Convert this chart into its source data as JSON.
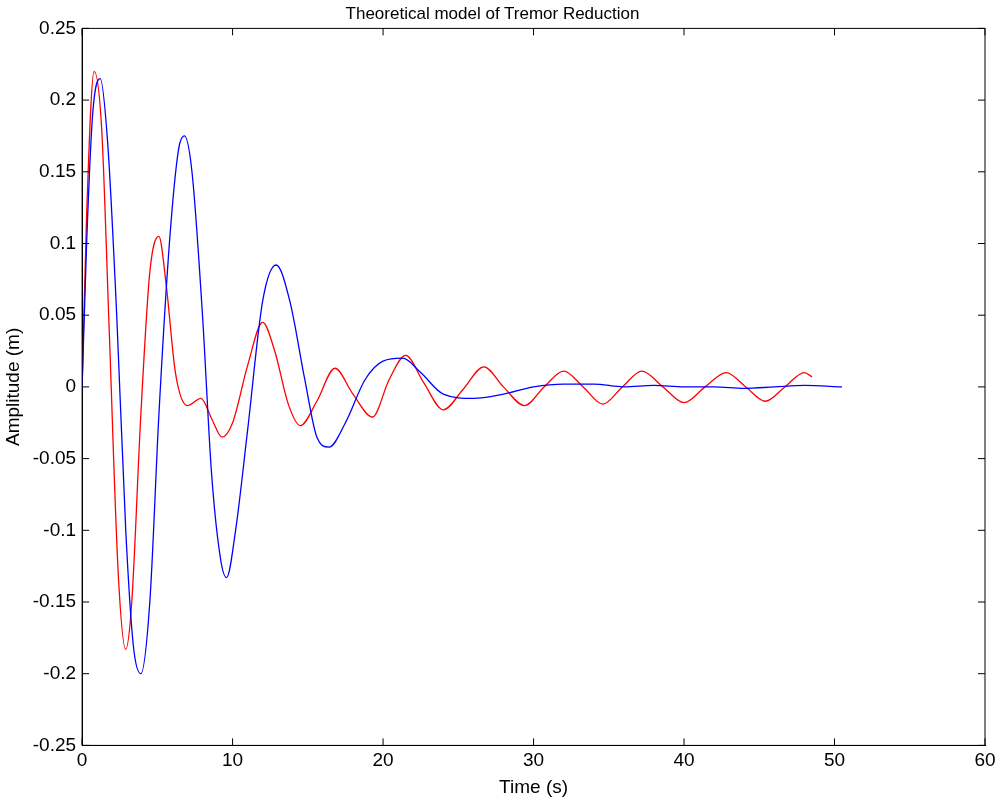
{
  "chart_data": {
    "type": "line",
    "title": "Theoretical model of Tremor Reduction",
    "xlabel": "Time (s)",
    "ylabel": "Amplitude (m)",
    "xlim": [
      0,
      60
    ],
    "xticks": [
      0,
      10,
      20,
      30,
      40,
      50,
      60
    ],
    "ylim": [
      -0.25,
      0.25
    ],
    "yticks": [
      -0.25,
      -0.2,
      -0.15,
      -0.1,
      -0.05,
      0,
      0.05,
      0.1,
      0.15,
      0.2,
      0.25
    ],
    "grid": false,
    "legend": false,
    "marker": "none",
    "line_style": "solid",
    "series": [
      {
        "color": "#0000ff",
        "x": [
          0,
          0.3,
          0.7,
          1.2,
          1.7,
          2.3,
          2.9,
          3.4,
          3.9,
          4.5,
          5.1,
          5.8,
          6.4,
          6.8,
          7.3,
          8,
          8.6,
          9.2,
          9.6,
          10.2,
          11,
          12,
          12.9,
          13.8,
          14.8,
          15.6,
          16.4,
          17.5,
          18.8,
          20,
          21.3,
          22.5,
          24,
          26,
          28,
          30,
          32,
          34,
          36,
          38,
          40,
          42,
          44,
          46,
          48,
          50.5
        ],
        "values": [
          0,
          0.1,
          0.19,
          0.215,
          0.17,
          0.05,
          -0.1,
          -0.18,
          -0.2,
          -0.15,
          -0.02,
          0.1,
          0.165,
          0.175,
          0.15,
          0.05,
          -0.06,
          -0.12,
          -0.133,
          -0.1,
          -0.03,
          0.06,
          0.085,
          0.06,
          0.005,
          -0.035,
          -0.042,
          -0.025,
          0.005,
          0.018,
          0.02,
          0.01,
          -0.005,
          -0.008,
          -0.005,
          0,
          0.002,
          0.002,
          0,
          0.001,
          0,
          0,
          -0.001,
          0,
          0.001,
          0
        ]
      },
      {
        "color": "#ff0000",
        "x": [
          0,
          0.3,
          0.8,
          1.3,
          1.8,
          2.4,
          2.9,
          3.3,
          3.9,
          4.5,
          5.1,
          5.6,
          6.2,
          7,
          7.9,
          8.6,
          9.3,
          10,
          11,
          12,
          12.8,
          13.7,
          14.5,
          15.6,
          16.8,
          18,
          19.3,
          20.4,
          21.5,
          22.7,
          24,
          25.3,
          26.7,
          28,
          29.4,
          30.7,
          32,
          33.3,
          34.6,
          35.9,
          37.2,
          38.6,
          40,
          41.4,
          42.8,
          44.1,
          45.4,
          46.7,
          48,
          48.5
        ],
        "values": [
          0,
          0.12,
          0.22,
          0.18,
          0.04,
          -0.13,
          -0.183,
          -0.15,
          -0.02,
          0.08,
          0.105,
          0.07,
          0.01,
          -0.013,
          -0.008,
          -0.022,
          -0.035,
          -0.025,
          0.015,
          0.045,
          0.025,
          -0.012,
          -0.027,
          -0.01,
          0.013,
          -0.005,
          -0.021,
          0.005,
          0.022,
          0.003,
          -0.016,
          -0.002,
          0.014,
          0,
          -0.013,
          0,
          0.011,
          0,
          -0.012,
          0,
          0.011,
          0,
          -0.011,
          0,
          0.01,
          0,
          -0.01,
          0,
          0.01,
          0.007
        ]
      }
    ]
  }
}
